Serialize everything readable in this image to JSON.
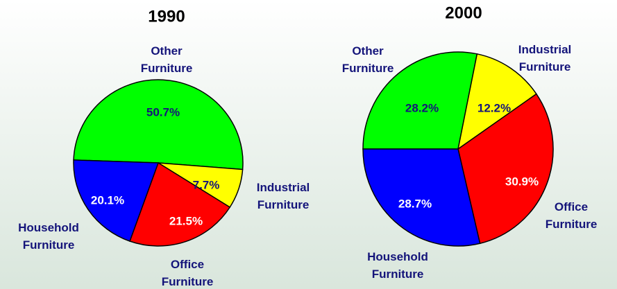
{
  "chart_data": [
    {
      "type": "pie",
      "title": "1990",
      "categories": [
        "Other Furniture",
        "Industrial Furniture",
        "Office Furniture",
        "Household Furniture"
      ],
      "values": [
        50.7,
        7.7,
        21.5,
        20.1
      ],
      "value_labels": [
        "50.7%",
        "7.7%",
        "21.5%",
        "20.1%"
      ],
      "colors": [
        "#00ff00",
        "#ffff00",
        "#ff0000",
        "#0000ff"
      ]
    },
    {
      "type": "pie",
      "title": "2000",
      "categories": [
        "Other Furniture",
        "Industrial Furniture",
        "Office Furniture",
        "Household Furniture"
      ],
      "values": [
        28.2,
        12.2,
        30.9,
        28.7
      ],
      "value_labels": [
        "28.2%",
        "12.2%",
        "30.9%",
        "28.7%"
      ],
      "colors": [
        "#00ff00",
        "#ffff00",
        "#ff0000",
        "#0000ff"
      ]
    }
  ]
}
